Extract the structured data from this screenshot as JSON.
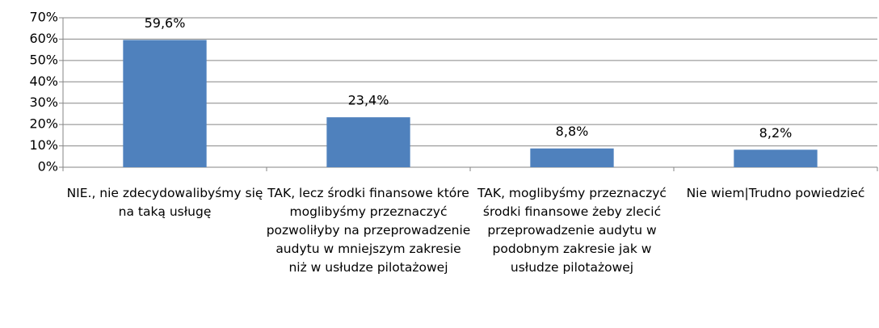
{
  "chart_data": {
    "type": "bar",
    "categories": [
      "NIE., nie zdecydowalibyśmy się na taką usługę",
      "TAK, lecz środki finansowe które moglibyśmy przeznaczyć pozwoliłyby na przeprowadzenie audytu w mniejszym zakresie niż w usłudze pilotażowej",
      "TAK, moglibyśmy przeznaczyć środki finansowe żeby zlecić przeprowadzenie audytu w podobnym zakresie jak w usłudze pilotażowej",
      "Nie wiem|Trudno powiedzieć"
    ],
    "values": [
      59.6,
      23.4,
      8.8,
      8.2
    ],
    "value_labels": [
      "59,6%",
      "23,4%",
      "8,8%",
      "8,2%"
    ],
    "color": "#4f81bd",
    "ylim": [
      0,
      70
    ],
    "yticks": [
      {
        "value": 0,
        "label": "0%"
      },
      {
        "value": 10,
        "label": "10%"
      },
      {
        "value": 20,
        "label": "20%"
      },
      {
        "value": 30,
        "label": "30%"
      },
      {
        "value": 40,
        "label": "40%"
      },
      {
        "value": 50,
        "label": "50%"
      },
      {
        "value": 60,
        "label": "60%"
      },
      {
        "value": 70,
        "label": "70%"
      }
    ],
    "grid": true
  }
}
